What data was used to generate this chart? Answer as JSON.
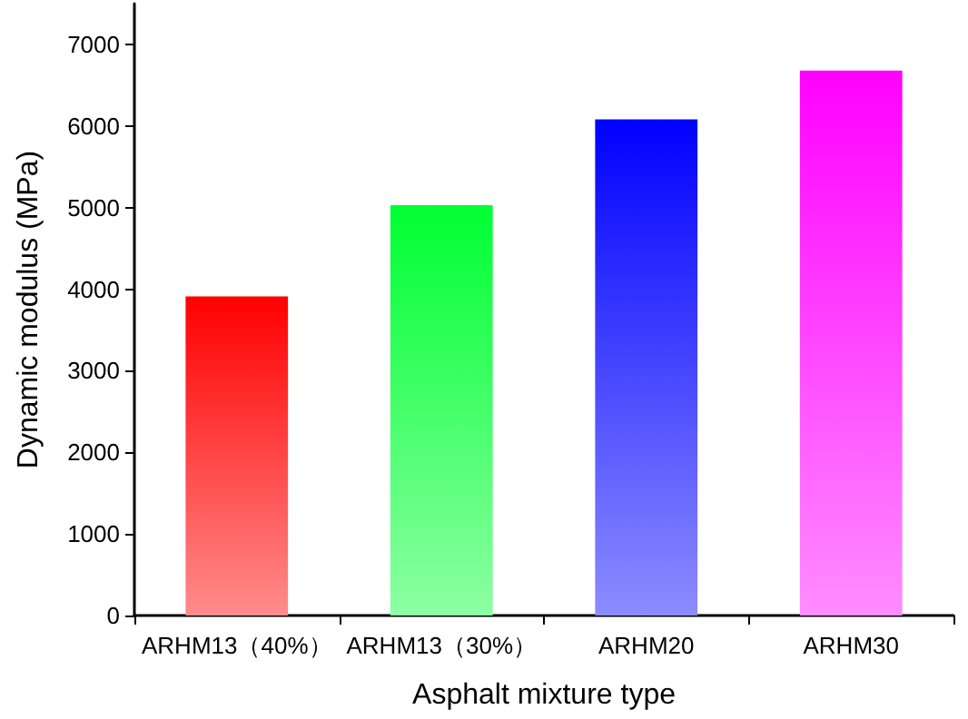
{
  "chart_data": {
    "type": "bar",
    "xlabel": "Asphalt mixture type",
    "ylabel": "Dynamic modulus (MPa)",
    "categories": [
      "ARHM13（40%）",
      "ARHM13（30%）",
      "ARHM20",
      "ARHM30"
    ],
    "values": [
      3910,
      5030,
      6080,
      6680
    ],
    "colors": [
      "#ff0000",
      "#00ff33",
      "#0000ff",
      "#ff00ff"
    ],
    "ylim": [
      0,
      7500
    ],
    "yticks": [
      0,
      1000,
      2000,
      3000,
      4000,
      5000,
      6000,
      7000
    ],
    "grid": false
  }
}
